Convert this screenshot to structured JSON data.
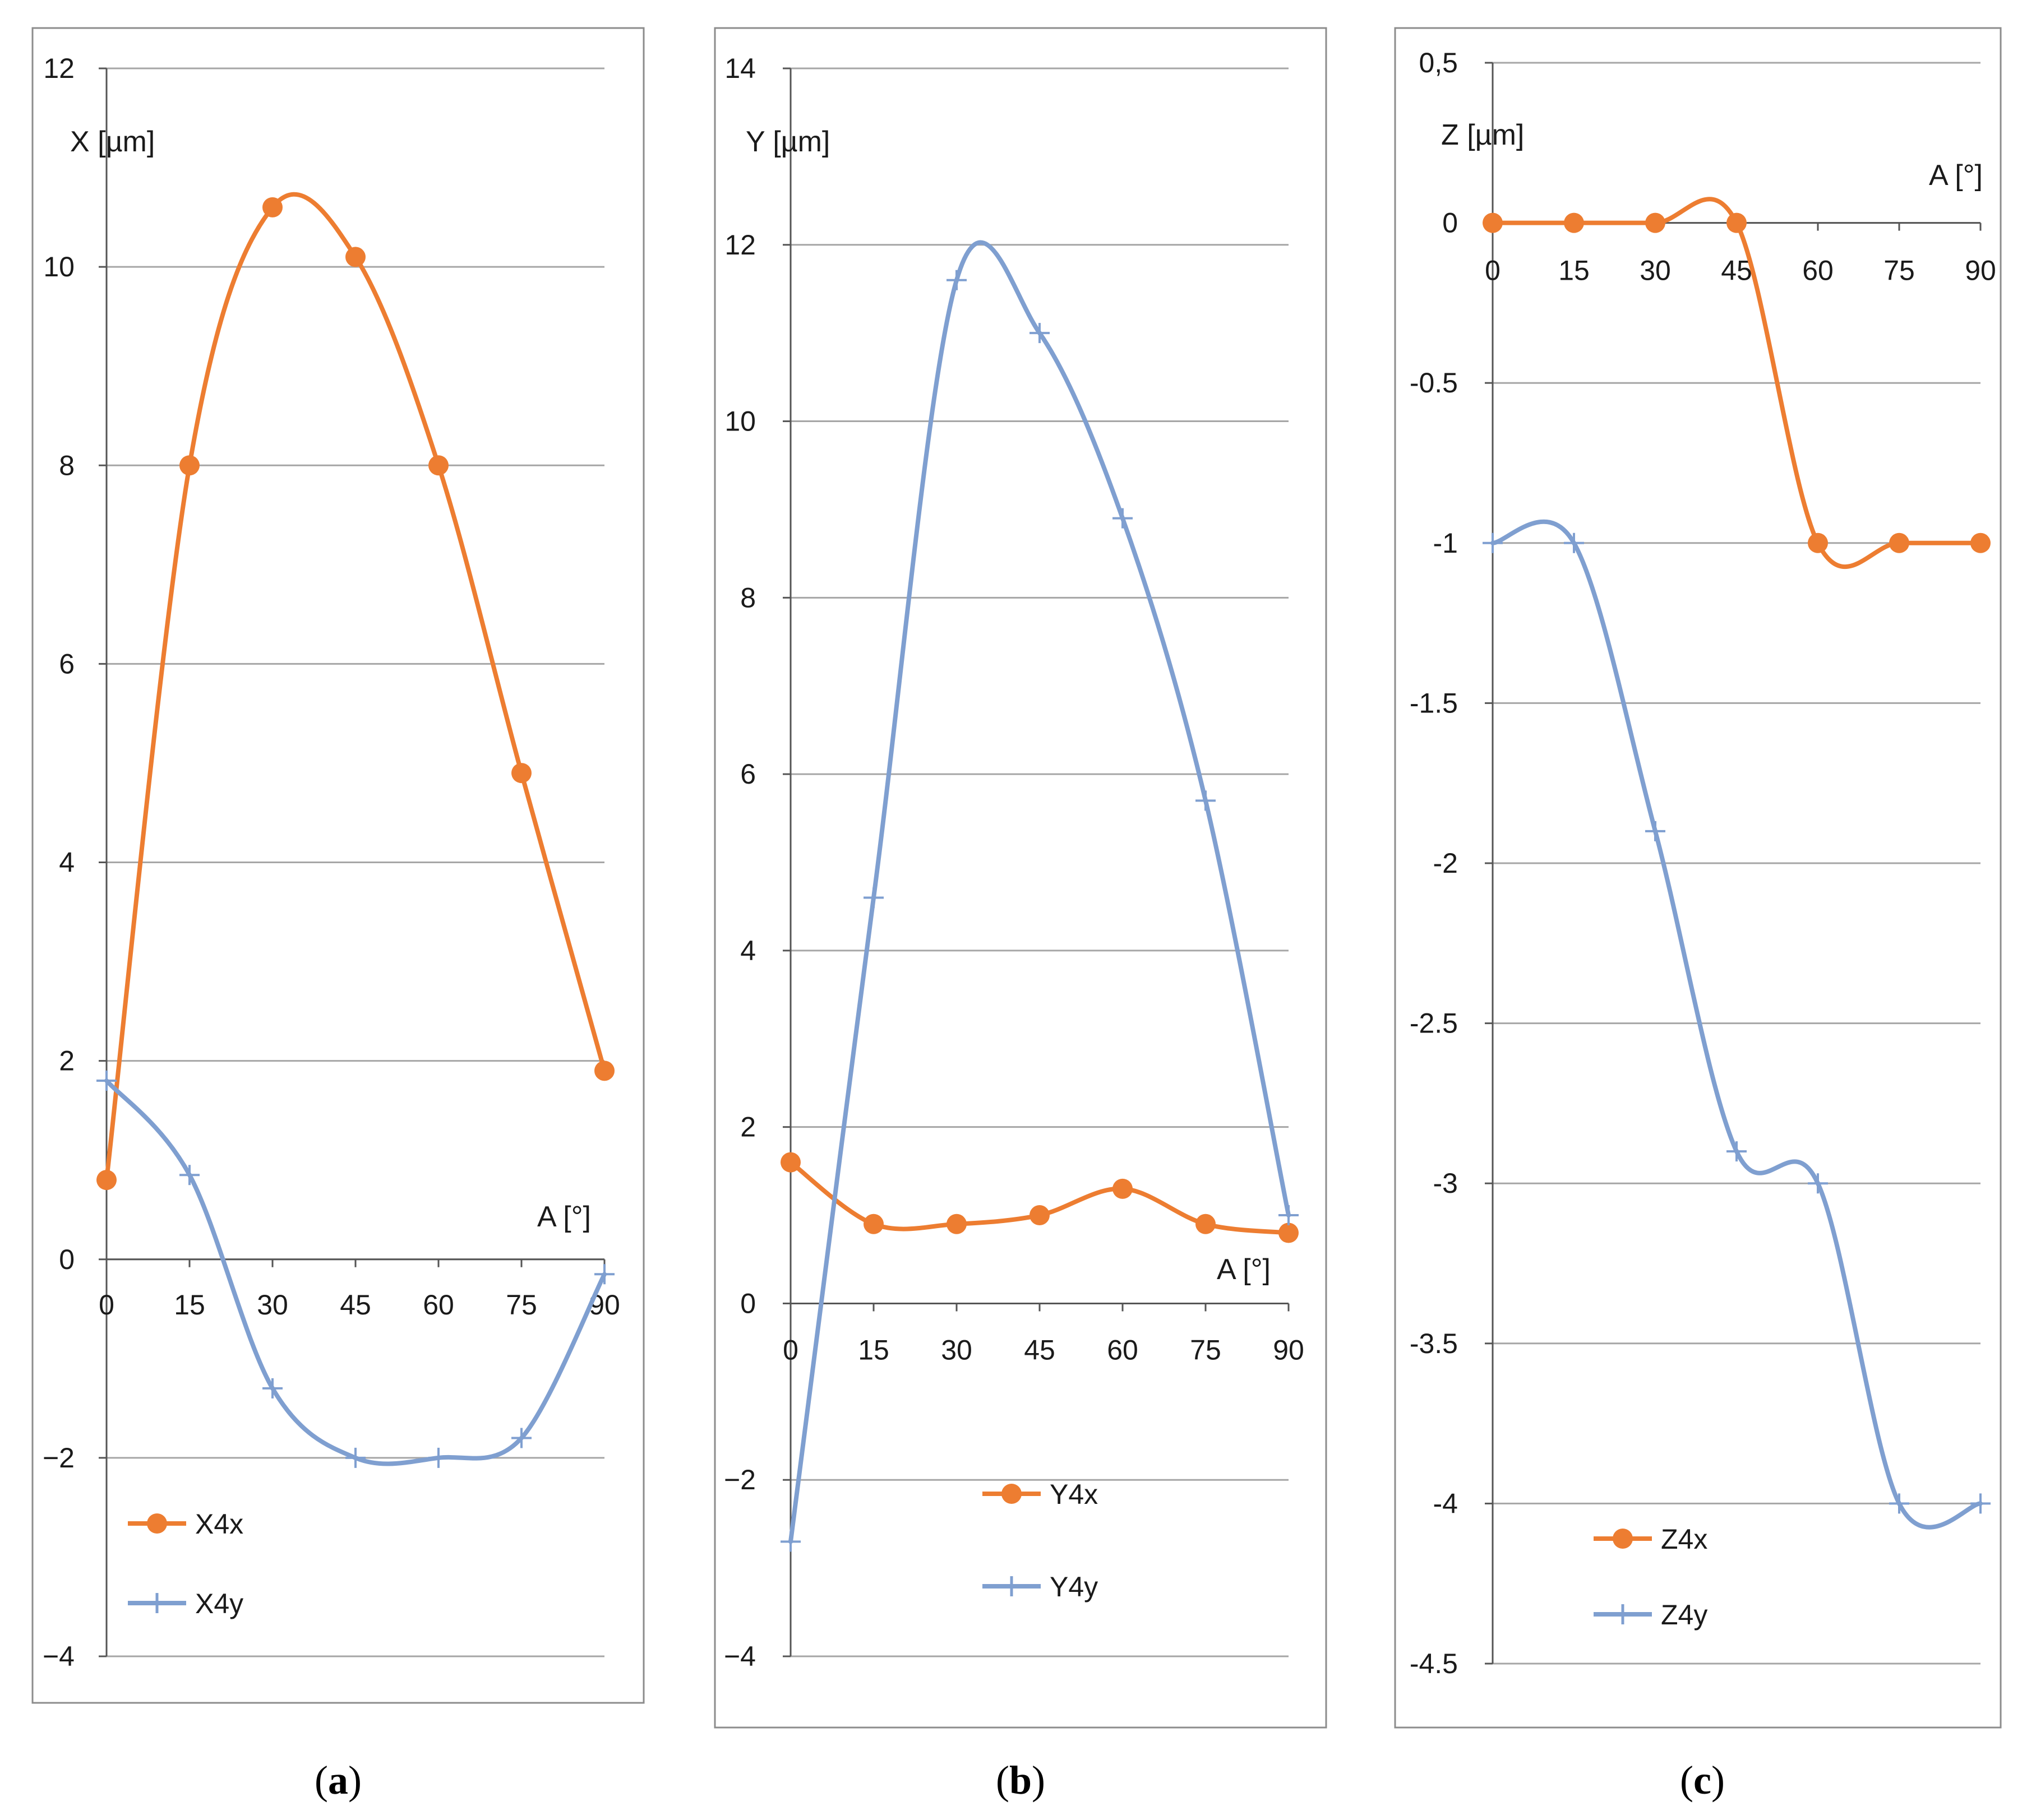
{
  "colors": {
    "series_x": "#ED7D31",
    "series_y": "#7F9FD0",
    "grid": "#A6A6A6",
    "frame": "#8C8C8C"
  },
  "chart_data": [
    {
      "panel": "a",
      "type": "line",
      "caption": {
        "open": "(",
        "letter": "a",
        "close": ")"
      },
      "ylabel": "X [µm]",
      "xlabel": "A [°]",
      "ylim": [
        -4,
        12
      ],
      "yticks": [
        12,
        10,
        8,
        6,
        4,
        2,
        0,
        -2,
        -4
      ],
      "ytick_labels": [
        "12",
        "10",
        "8",
        "6",
        "4",
        "2",
        "0",
        "−2",
        "−4"
      ],
      "x": [
        0,
        15,
        30,
        45,
        60,
        75,
        90
      ],
      "xtick_labels": [
        "0",
        "15",
        "30",
        "45",
        "60",
        "75",
        "90"
      ],
      "smooth": true,
      "legend_position": "bottom-left",
      "series": [
        {
          "name": "X4x",
          "marker": "circle",
          "values": [
            0.8,
            8.0,
            10.6,
            10.1,
            8.0,
            4.9,
            1.9
          ]
        },
        {
          "name": "X4y",
          "marker": "plus",
          "values": [
            1.8,
            0.85,
            -1.3,
            -2.0,
            -2.0,
            -1.8,
            -0.15
          ]
        }
      ]
    },
    {
      "panel": "b",
      "type": "line",
      "caption": {
        "open": "(",
        "letter": "b",
        "close": ")"
      },
      "ylabel": "Y [µm]",
      "xlabel": "A [°]",
      "ylim": [
        -4,
        14
      ],
      "yticks": [
        14,
        12,
        10,
        8,
        6,
        4,
        2,
        0,
        -2,
        -4
      ],
      "ytick_labels": [
        "14",
        "12",
        "10",
        "8",
        "6",
        "4",
        "2",
        "0",
        "−2",
        "−4"
      ],
      "x": [
        0,
        15,
        30,
        45,
        60,
        75,
        90
      ],
      "xtick_labels": [
        "0",
        "15",
        "30",
        "45",
        "60",
        "75",
        "90"
      ],
      "smooth": true,
      "legend_position": "bottom-center",
      "series": [
        {
          "name": "Y4x",
          "marker": "circle",
          "values": [
            1.6,
            0.9,
            0.9,
            1.0,
            1.3,
            0.9,
            0.8
          ]
        },
        {
          "name": "Y4y",
          "marker": "plus",
          "values": [
            -2.7,
            4.6,
            11.6,
            11.0,
            8.9,
            5.7,
            1.0
          ]
        }
      ]
    },
    {
      "panel": "c",
      "type": "line",
      "caption": {
        "open": "(",
        "letter": "c",
        "close": ")"
      },
      "ylabel": "Z [µm]",
      "xlabel": "A [°]",
      "ylim": [
        -4.5,
        0.5
      ],
      "yticks": [
        0.5,
        0,
        -0.5,
        -1,
        -1.5,
        -2,
        -2.5,
        -3,
        -3.5,
        -4,
        -4.5
      ],
      "ytick_labels": [
        "0,5",
        "0",
        "-0.5",
        "-1",
        "-1.5",
        "-2",
        "-2.5",
        "-3",
        "-3.5",
        "-4",
        "-4.5"
      ],
      "x": [
        0,
        15,
        30,
        45,
        60,
        75,
        90
      ],
      "xtick_labels": [
        "0",
        "15",
        "30",
        "45",
        "60",
        "75",
        "90"
      ],
      "smooth": true,
      "legend_position": "bottom-center",
      "series": [
        {
          "name": "Z4x",
          "marker": "circle",
          "values": [
            0,
            0,
            0,
            0,
            -1,
            -1,
            -1
          ]
        },
        {
          "name": "Z4y",
          "marker": "plus",
          "values": [
            -1,
            -1,
            -1.9,
            -2.9,
            -3.0,
            -4.0,
            -4.0
          ]
        }
      ]
    }
  ]
}
